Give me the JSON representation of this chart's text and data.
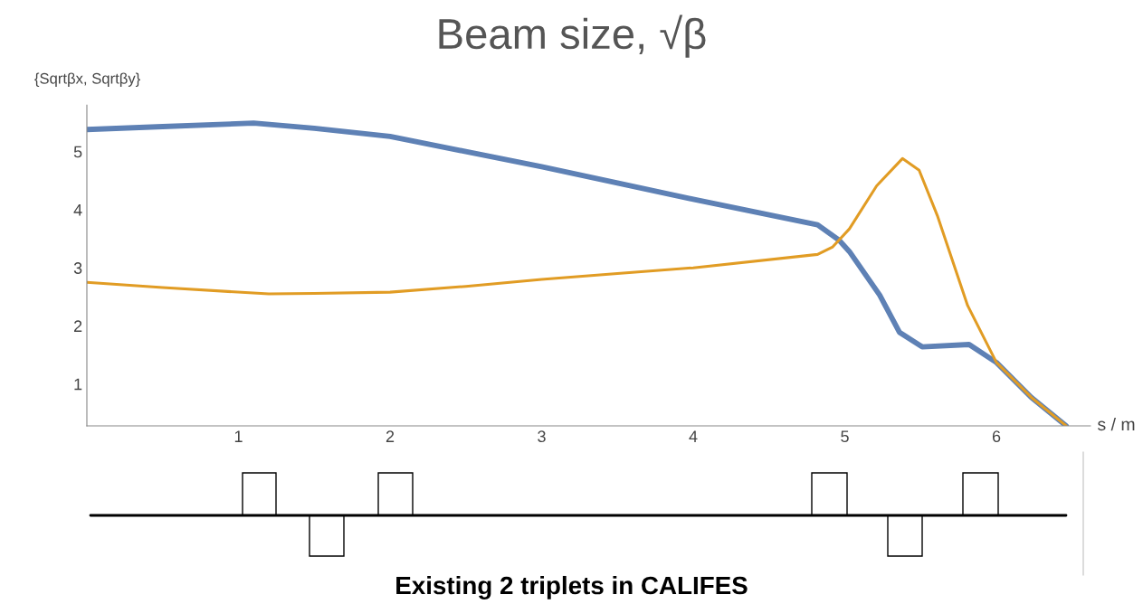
{
  "chart_data": {
    "type": "line",
    "title": "Beam size, √β",
    "ylabel": "{Sqrtβx, Sqrtβy}",
    "xlabel": "s / m",
    "annotations": [
      "Existing 2 triplets in CALIFES"
    ],
    "x": [
      0,
      0.5,
      1.1,
      1.5,
      2,
      2.5,
      3,
      3.5,
      4,
      4.82,
      4.96,
      5.03,
      5.23,
      5.36,
      5.51,
      5.82,
      6.0,
      6.23,
      6.46
    ],
    "series": [
      {
        "color": "#5e81b5",
        "values": [
          5.38,
          5.43,
          5.49,
          5.4,
          5.26,
          5.0,
          4.74,
          4.46,
          4.18,
          3.74,
          3.48,
          3.28,
          2.53,
          1.89,
          1.64,
          1.68,
          1.37,
          0.77,
          0.28
        ]
      },
      {
        "color": "#e19c24",
        "x": [
          0,
          0.5,
          1.2,
          1.5,
          2,
          2.5,
          3,
          3.5,
          4,
          4.82,
          4.92,
          5.03,
          5.21,
          5.38,
          5.49,
          5.61,
          5.81,
          6.0,
          6.23,
          6.46
        ],
        "values": [
          2.75,
          2.66,
          2.55,
          2.56,
          2.58,
          2.68,
          2.8,
          2.9,
          3.0,
          3.23,
          3.36,
          3.67,
          4.41,
          4.88,
          4.68,
          3.9,
          2.35,
          1.37,
          0.77,
          0.28
        ]
      }
    ],
    "xlim": [
      0,
      6.62
    ],
    "ylim": [
      0.28,
      5.8
    ],
    "xticks": [
      1,
      2,
      3,
      4,
      5,
      6
    ],
    "yticks": [
      1,
      2,
      3,
      4,
      5
    ],
    "grid": false,
    "legend": false
  }
}
